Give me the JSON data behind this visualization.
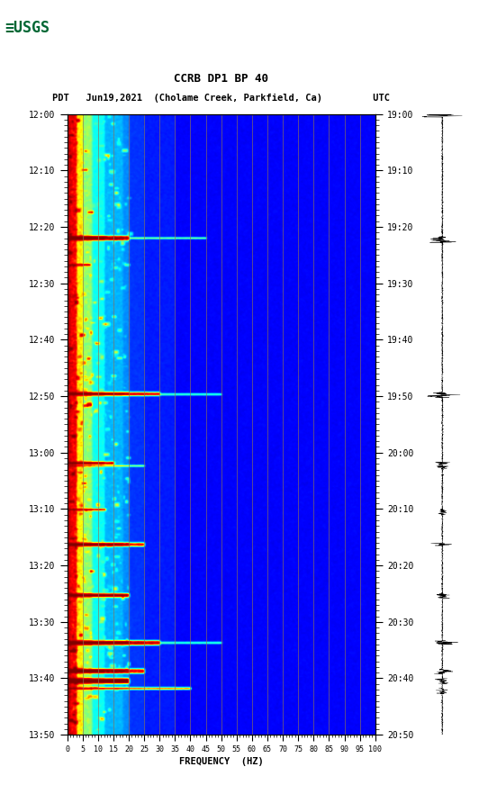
{
  "title_line1": "CCRB DP1 BP 40",
  "title_line2": "PDT   Jun19,2021  (Cholame Creek, Parkfield, Ca)         UTC",
  "xlabel": "FREQUENCY  (HZ)",
  "freq_ticks": [
    0,
    5,
    10,
    15,
    20,
    25,
    30,
    35,
    40,
    45,
    50,
    55,
    60,
    65,
    70,
    75,
    80,
    85,
    90,
    95,
    100
  ],
  "time_labels_left": [
    "12:00",
    "12:10",
    "12:20",
    "12:30",
    "12:40",
    "12:50",
    "13:00",
    "13:10",
    "13:20",
    "13:30",
    "13:40",
    "13:50"
  ],
  "time_labels_right": [
    "19:00",
    "19:10",
    "19:20",
    "19:30",
    "19:40",
    "19:50",
    "20:00",
    "20:10",
    "20:20",
    "20:30",
    "20:40",
    "20:50"
  ],
  "freq_min": 0,
  "freq_max": 100,
  "n_time": 660,
  "n_freq": 400,
  "vertical_line_freqs": [
    5,
    10,
    15,
    20,
    25,
    30,
    35,
    40,
    45,
    50,
    55,
    60,
    65,
    70,
    75,
    80,
    85,
    90,
    95
  ],
  "vertical_line_color": "#8B7355",
  "figure_bg": "white",
  "cmap_colors": [
    [
      0.0,
      "#000080"
    ],
    [
      0.1,
      "#0000ff"
    ],
    [
      0.25,
      "#0080ff"
    ],
    [
      0.4,
      "#00ffff"
    ],
    [
      0.55,
      "#80ff80"
    ],
    [
      0.65,
      "#ffff00"
    ],
    [
      0.75,
      "#ff8000"
    ],
    [
      0.85,
      "#ff0000"
    ],
    [
      0.92,
      "#cc0000"
    ],
    [
      1.0,
      "#800000"
    ]
  ]
}
